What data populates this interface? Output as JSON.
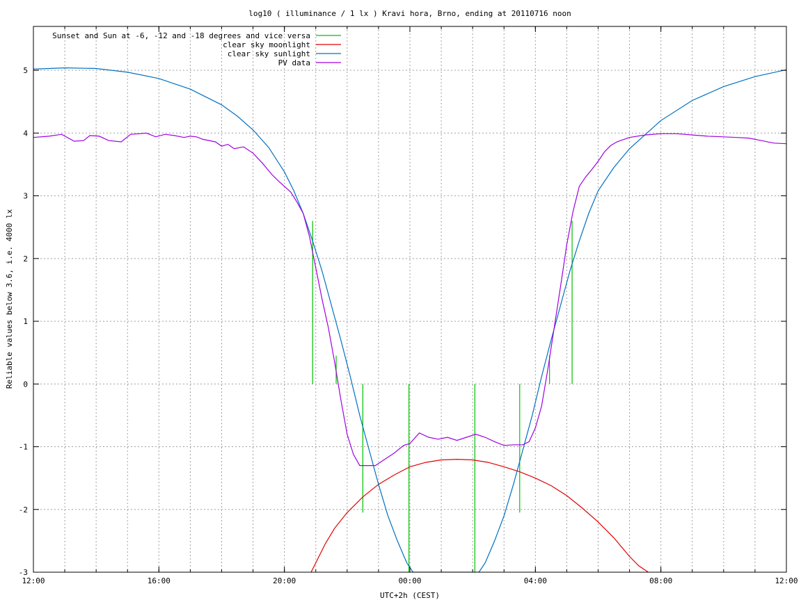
{
  "chart_data": {
    "type": "line",
    "title": "log10 ( illuminance / 1 lx ) Kravi hora, Brno, ending at 20110716 noon",
    "xlabel": "UTC+2h (CEST)",
    "ylabel": "Reliable values below 3.6, i.e. 4000 lx",
    "x_unit": "hours since 12:00 (UTC+2h)",
    "xlim": [
      0,
      24
    ],
    "ylim": [
      -3,
      5.7
    ],
    "x_ticks": [
      {
        "value": 0,
        "label": "12:00"
      },
      {
        "value": 4,
        "label": "16:00"
      },
      {
        "value": 8,
        "label": "20:00"
      },
      {
        "value": 12,
        "label": "00:00"
      },
      {
        "value": 16,
        "label": "04:00"
      },
      {
        "value": 20,
        "label": "08:00"
      },
      {
        "value": 24,
        "label": "12:00"
      }
    ],
    "x_minor_step": 1,
    "y_ticks": [
      {
        "value": -3,
        "label": "-3"
      },
      {
        "value": -2,
        "label": "-2"
      },
      {
        "value": -1,
        "label": "-1"
      },
      {
        "value": 0,
        "label": "0"
      },
      {
        "value": 1,
        "label": "1"
      },
      {
        "value": 2,
        "label": "2"
      },
      {
        "value": 3,
        "label": "3"
      },
      {
        "value": 4,
        "label": "4"
      },
      {
        "value": 5,
        "label": "5"
      }
    ],
    "grid": true,
    "legend_position": "top-left",
    "series": [
      {
        "name": "Sunset and Sun at -6, -12 and -18 degrees and vice versa",
        "color": "#00c000",
        "kind": "vlines",
        "lines": [
          {
            "x": 8.9,
            "y0": 0,
            "y1": 2.6
          },
          {
            "x": 9.65,
            "y0": 0,
            "y1": 0.45
          },
          {
            "x": 10.5,
            "y0": 0,
            "y1": -2.05
          },
          {
            "x": 11.97,
            "y0": 0,
            "y1": -3
          },
          {
            "x": 14.07,
            "y0": 0,
            "y1": -3
          },
          {
            "x": 15.5,
            "y0": 0,
            "y1": -2.05
          },
          {
            "x": 16.45,
            "y0": 0,
            "y1": 0.45
          },
          {
            "x": 17.17,
            "y0": 0,
            "y1": 2.6
          }
        ]
      },
      {
        "name": "clear sky moonlight",
        "color": "#e00000",
        "x": [
          8.85,
          9.0,
          9.3,
          9.6,
          10.0,
          10.5,
          11.0,
          11.5,
          12.0,
          12.5,
          13.0,
          13.5,
          14.0,
          14.5,
          15.0,
          15.5,
          16.0,
          16.5,
          17.0,
          17.5,
          18.0,
          18.5,
          19.0,
          19.3,
          19.6
        ],
        "values": [
          -3.0,
          -2.85,
          -2.55,
          -2.3,
          -2.05,
          -1.8,
          -1.6,
          -1.45,
          -1.32,
          -1.25,
          -1.21,
          -1.2,
          -1.21,
          -1.25,
          -1.32,
          -1.4,
          -1.5,
          -1.62,
          -1.78,
          -1.98,
          -2.2,
          -2.45,
          -2.75,
          -2.9,
          -3.0
        ]
      },
      {
        "name": "clear sky sunlight",
        "color": "#0070c0",
        "x": [
          0,
          1,
          2,
          3,
          4,
          5,
          6,
          6.5,
          7,
          7.5,
          8,
          8.3,
          8.6,
          8.9,
          9.2,
          9.5,
          9.8,
          10.1,
          10.4,
          10.7,
          11.0,
          11.3,
          11.6,
          11.9,
          12.1,
          14.2,
          14.4,
          14.7,
          15.0,
          15.3,
          15.6,
          15.9,
          16.2,
          16.5,
          16.8,
          17.1,
          17.4,
          17.7,
          18.0,
          18.5,
          19,
          20,
          21,
          22,
          23,
          24
        ],
        "values": [
          5.02,
          5.04,
          5.03,
          4.97,
          4.87,
          4.7,
          4.45,
          4.27,
          4.05,
          3.77,
          3.38,
          3.08,
          2.72,
          2.28,
          1.8,
          1.25,
          0.7,
          0.12,
          -0.5,
          -1.05,
          -1.6,
          -2.1,
          -2.5,
          -2.85,
          -3.0,
          -3.0,
          -2.85,
          -2.5,
          -2.1,
          -1.6,
          -1.05,
          -0.5,
          0.12,
          0.7,
          1.25,
          1.8,
          2.28,
          2.72,
          3.08,
          3.45,
          3.75,
          4.2,
          4.52,
          4.74,
          4.9,
          5.01
        ]
      },
      {
        "name": "PV data",
        "color": "#a000e0",
        "x": [
          0,
          0.5,
          0.9,
          1.3,
          1.6,
          1.8,
          2.1,
          2.4,
          2.8,
          3.1,
          3.4,
          3.6,
          3.9,
          4.2,
          4.5,
          4.8,
          5.0,
          5.2,
          5.4,
          5.8,
          6.0,
          6.2,
          6.4,
          6.7,
          7.0,
          7.3,
          7.6,
          7.8,
          8.0,
          8.2,
          8.4,
          8.6,
          8.8,
          9.0,
          9.2,
          9.4,
          9.6,
          9.8,
          10.0,
          10.2,
          10.4,
          10.6,
          10.9,
          11.2,
          11.5,
          11.8,
          12.0,
          12.3,
          12.6,
          12.9,
          13.2,
          13.5,
          13.8,
          14.1,
          14.4,
          14.7,
          15.0,
          15.3,
          15.6,
          15.8,
          16.0,
          16.2,
          16.4,
          16.6,
          16.8,
          17.0,
          17.2,
          17.4,
          17.6,
          17.8,
          18.0,
          18.2,
          18.4,
          18.6,
          19.0,
          19.5,
          20.0,
          20.5,
          21.0,
          21.5,
          22.0,
          22.4,
          22.8,
          23.2,
          23.6,
          24.0
        ],
        "values": [
          3.93,
          3.95,
          3.98,
          3.87,
          3.88,
          3.96,
          3.95,
          3.88,
          3.86,
          3.98,
          3.99,
          4.0,
          3.94,
          3.98,
          3.96,
          3.93,
          3.95,
          3.94,
          3.9,
          3.86,
          3.79,
          3.82,
          3.75,
          3.78,
          3.68,
          3.52,
          3.34,
          3.24,
          3.15,
          3.06,
          2.9,
          2.72,
          2.35,
          1.85,
          1.35,
          0.9,
          0.35,
          -0.25,
          -0.8,
          -1.12,
          -1.3,
          -1.3,
          -1.3,
          -1.2,
          -1.1,
          -0.98,
          -0.95,
          -0.78,
          -0.85,
          -0.88,
          -0.85,
          -0.9,
          -0.85,
          -0.8,
          -0.85,
          -0.92,
          -0.98,
          -0.97,
          -0.97,
          -0.92,
          -0.7,
          -0.35,
          0.25,
          0.9,
          1.55,
          2.22,
          2.75,
          3.15,
          3.3,
          3.42,
          3.55,
          3.7,
          3.8,
          3.86,
          3.93,
          3.97,
          3.99,
          3.99,
          3.97,
          3.95,
          3.94,
          3.93,
          3.92,
          3.88,
          3.84,
          3.83
        ]
      }
    ]
  }
}
